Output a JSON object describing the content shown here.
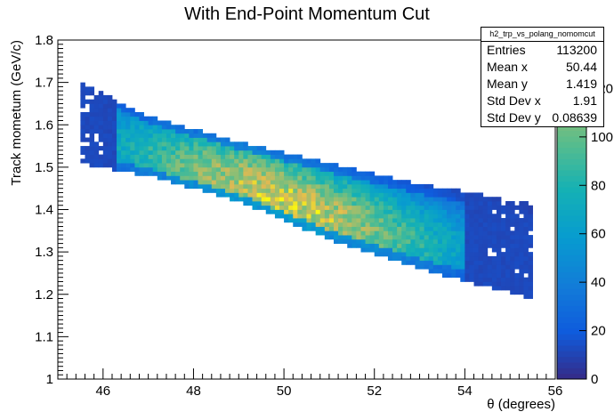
{
  "chart_data": {
    "type": "heatmap",
    "title": "With End-Point Momentum Cut",
    "xlabel": "θ (degrees)",
    "ylabel": "Track mometum (GeV/c)",
    "xlim": [
      45,
      56
    ],
    "ylim": [
      1.0,
      1.8
    ],
    "x_ticks": [
      "46",
      "48",
      "50",
      "52",
      "54",
      "56"
    ],
    "y_ticks": [
      "1",
      "1.1",
      "1.2",
      "1.3",
      "1.4",
      "1.5",
      "1.6",
      "1.7",
      "1.8"
    ],
    "z_range": [
      0,
      140
    ],
    "z_ticks": [
      "0",
      "20",
      "40",
      "60",
      "80",
      "100",
      "120"
    ],
    "colormap": "parula",
    "band": {
      "upper_edge": [
        [
          45.5,
          1.7
        ],
        [
          47.0,
          1.62
        ],
        [
          49.0,
          1.56
        ],
        [
          51.0,
          1.51
        ],
        [
          53.0,
          1.46
        ],
        [
          55.3,
          1.42
        ]
      ],
      "lower_edge": [
        [
          45.5,
          1.51
        ],
        [
          47.0,
          1.48
        ],
        [
          49.0,
          1.42
        ],
        [
          51.0,
          1.33
        ],
        [
          53.0,
          1.26
        ],
        [
          55.5,
          1.19
        ]
      ],
      "peak": [
        50.0,
        1.36
      ],
      "peak_count": 135
    },
    "stats": {
      "title": "h2_trp_vs_polang_nomomcut",
      "rows": [
        {
          "label": "Entries",
          "value": "113200"
        },
        {
          "label": "Mean x",
          "value": "50.44"
        },
        {
          "label": "Mean y",
          "value": "1.419"
        },
        {
          "label": "Std Dev x",
          "value": "1.91"
        },
        {
          "label": "Std Dev y",
          "value": "0.08639"
        }
      ]
    }
  }
}
